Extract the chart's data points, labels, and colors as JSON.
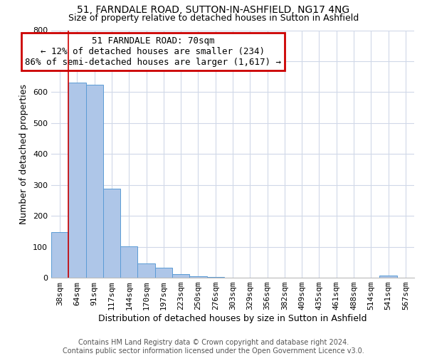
{
  "title1": "51, FARNDALE ROAD, SUTTON-IN-ASHFIELD, NG17 4NG",
  "title2": "Size of property relative to detached houses in Sutton in Ashfield",
  "xlabel": "Distribution of detached houses by size in Sutton in Ashfield",
  "ylabel": "Number of detached properties",
  "footer1": "Contains HM Land Registry data © Crown copyright and database right 2024.",
  "footer2": "Contains public sector information licensed under the Open Government Licence v3.0.",
  "bin_labels": [
    "38sqm",
    "64sqm",
    "91sqm",
    "117sqm",
    "144sqm",
    "170sqm",
    "197sqm",
    "223sqm",
    "250sqm",
    "276sqm",
    "303sqm",
    "329sqm",
    "356sqm",
    "382sqm",
    "409sqm",
    "435sqm",
    "461sqm",
    "488sqm",
    "514sqm",
    "541sqm",
    "567sqm"
  ],
  "bar_values": [
    148,
    630,
    625,
    287,
    102,
    45,
    32,
    12,
    5,
    2,
    0,
    0,
    0,
    0,
    0,
    0,
    0,
    0,
    0,
    8,
    0
  ],
  "bar_color": "#aec6e8",
  "bar_edge_color": "#5b9bd5",
  "vline_x_index": 1,
  "vline_color": "#cc0000",
  "annotation_line1": "51 FARNDALE ROAD: 70sqm",
  "annotation_line2": "← 12% of detached houses are smaller (234)",
  "annotation_line3": "86% of semi-detached houses are larger (1,617) →",
  "annotation_box_color": "#cc0000",
  "ylim": [
    0,
    800
  ],
  "yticks": [
    0,
    100,
    200,
    300,
    400,
    500,
    600,
    700,
    800
  ],
  "background_color": "#ffffff",
  "grid_color": "#d0d8e8",
  "title1_fontsize": 10,
  "title2_fontsize": 9,
  "axis_label_fontsize": 9,
  "tick_fontsize": 8,
  "annotation_fontsize": 9,
  "footer_fontsize": 7
}
